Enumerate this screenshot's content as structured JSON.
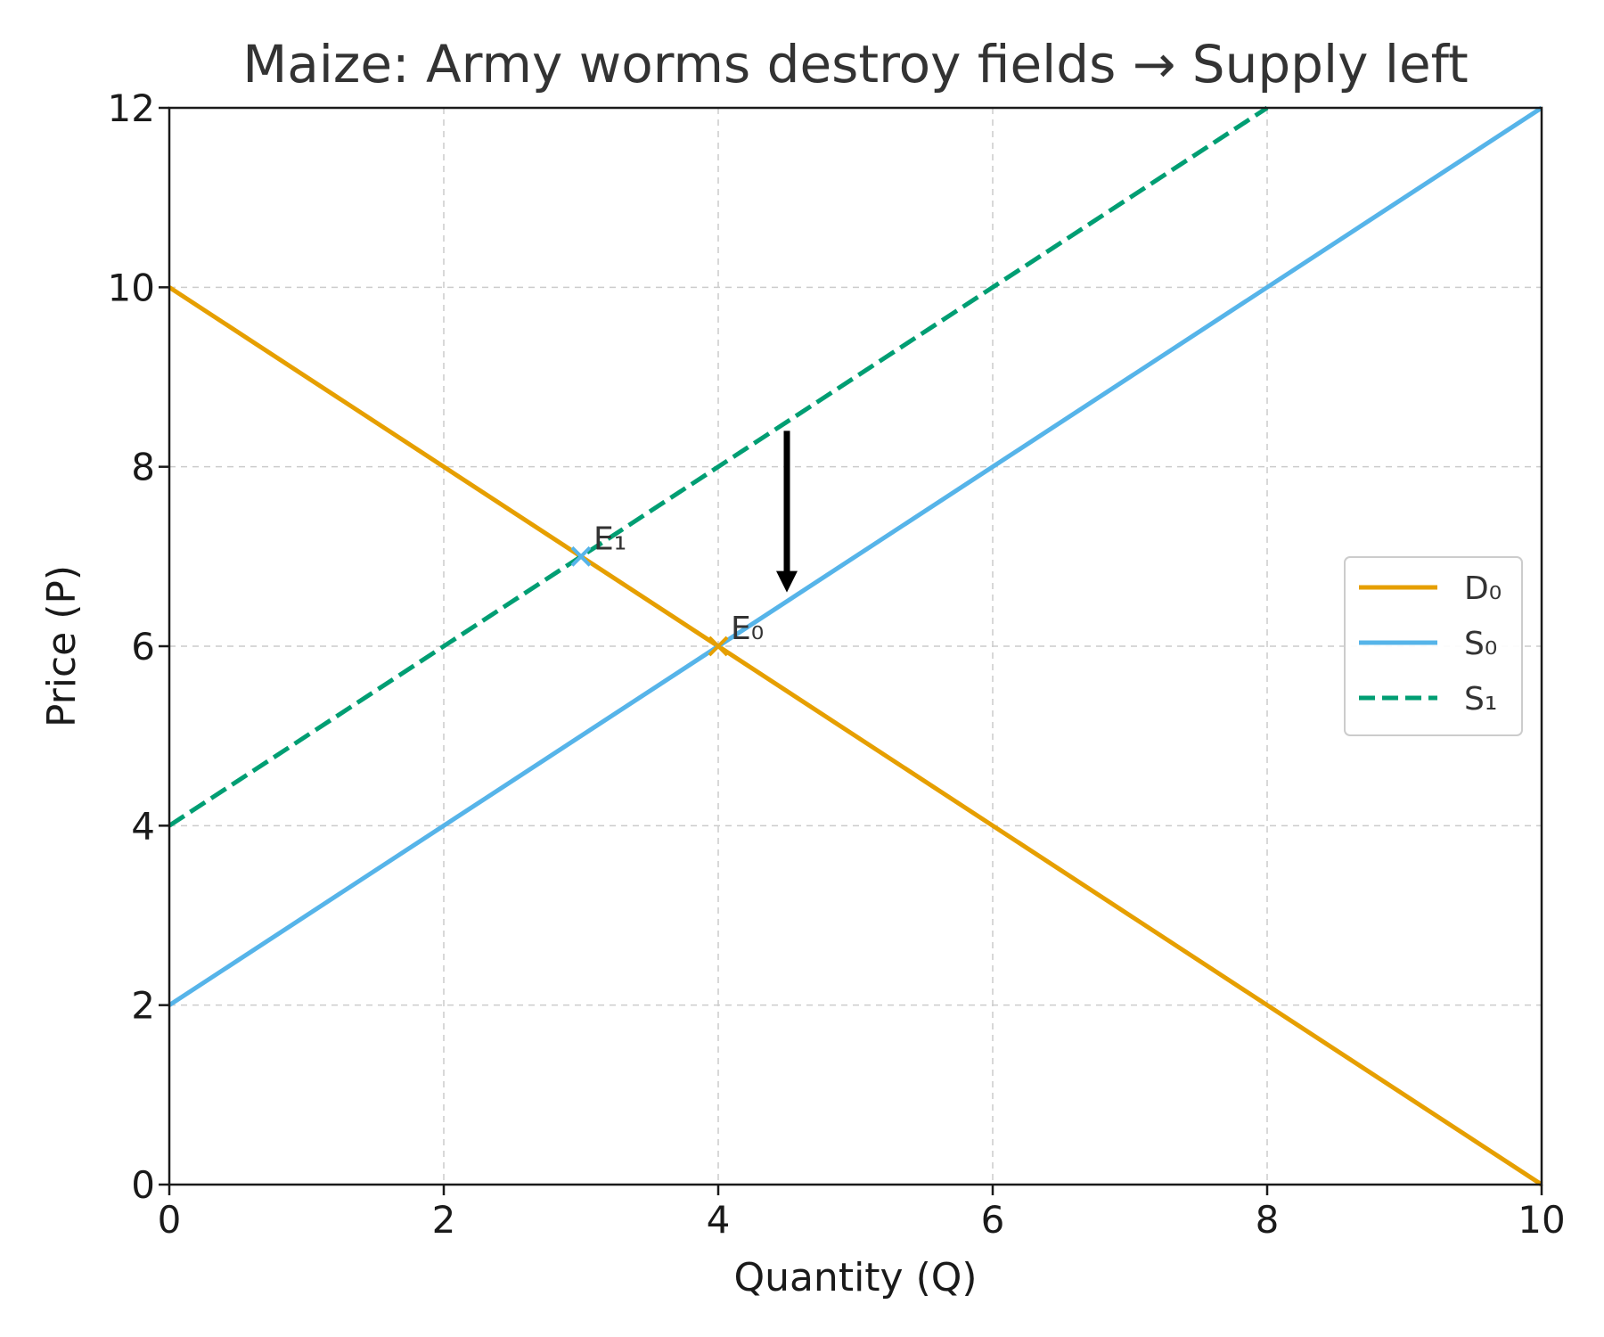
{
  "chart_data": {
    "type": "line",
    "title": "Maize: Army worms destroy fields → Supply left",
    "xlabel": "Quantity (Q)",
    "ylabel": "Price (P)",
    "xlim": [
      0,
      10
    ],
    "ylim": [
      0,
      12
    ],
    "xticks": [
      0,
      2,
      4,
      6,
      8,
      10
    ],
    "yticks": [
      0,
      2,
      4,
      6,
      8,
      10,
      12
    ],
    "grid": true,
    "legend_position": "right",
    "series": [
      {
        "name": "D₀",
        "color": "#E69F00",
        "style": "solid",
        "x": [
          0,
          10
        ],
        "y": [
          10,
          0
        ]
      },
      {
        "name": "S₀",
        "color": "#56B4E9",
        "style": "solid",
        "x": [
          0,
          10
        ],
        "y": [
          2,
          12
        ]
      },
      {
        "name": "S₁",
        "color": "#009E73",
        "style": "dashed",
        "x": [
          0,
          8
        ],
        "y": [
          4,
          12
        ]
      }
    ],
    "points": [
      {
        "label": "E₀",
        "x": 4,
        "y": 6,
        "color": "#E69F00",
        "marker": "x"
      },
      {
        "label": "E₁",
        "x": 3,
        "y": 7,
        "color": "#56B4E9",
        "marker": "x"
      }
    ],
    "arrow": {
      "x": 4.5,
      "y_from": 8.4,
      "y_to": 6.6,
      "color": "#000000"
    }
  }
}
